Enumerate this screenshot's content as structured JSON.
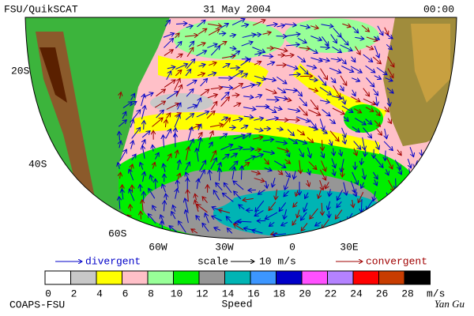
{
  "header": {
    "source": "FSU/QuikSCAT",
    "date": "31 May 2004",
    "time": "00:00"
  },
  "map": {
    "lat_labels": [
      "20S",
      "40S",
      "60S"
    ],
    "lon_labels": [
      "60W",
      "30W",
      "0",
      "30E"
    ]
  },
  "legend": {
    "divergent": "divergent",
    "scale": "scale",
    "scale_value": "10 m/s",
    "convergent": "convergent"
  },
  "colorbar": {
    "ticks": [
      0,
      2,
      4,
      6,
      8,
      10,
      12,
      14,
      16,
      18,
      20,
      22,
      24,
      26,
      28
    ],
    "unit": "m/s",
    "label": "Speed",
    "colors": [
      "#ffffff",
      "#c8c8c8",
      "#ffff00",
      "#ffc0c8",
      "#98ff98",
      "#00ee00",
      "#969696",
      "#00b4b4",
      "#3c96ff",
      "#0000c8",
      "#ff50ff",
      "#b482ff",
      "#ff0000",
      "#c83c00",
      "#000000"
    ]
  },
  "footer": {
    "left": "COAPS-FSU",
    "right": "Yan Gu"
  }
}
